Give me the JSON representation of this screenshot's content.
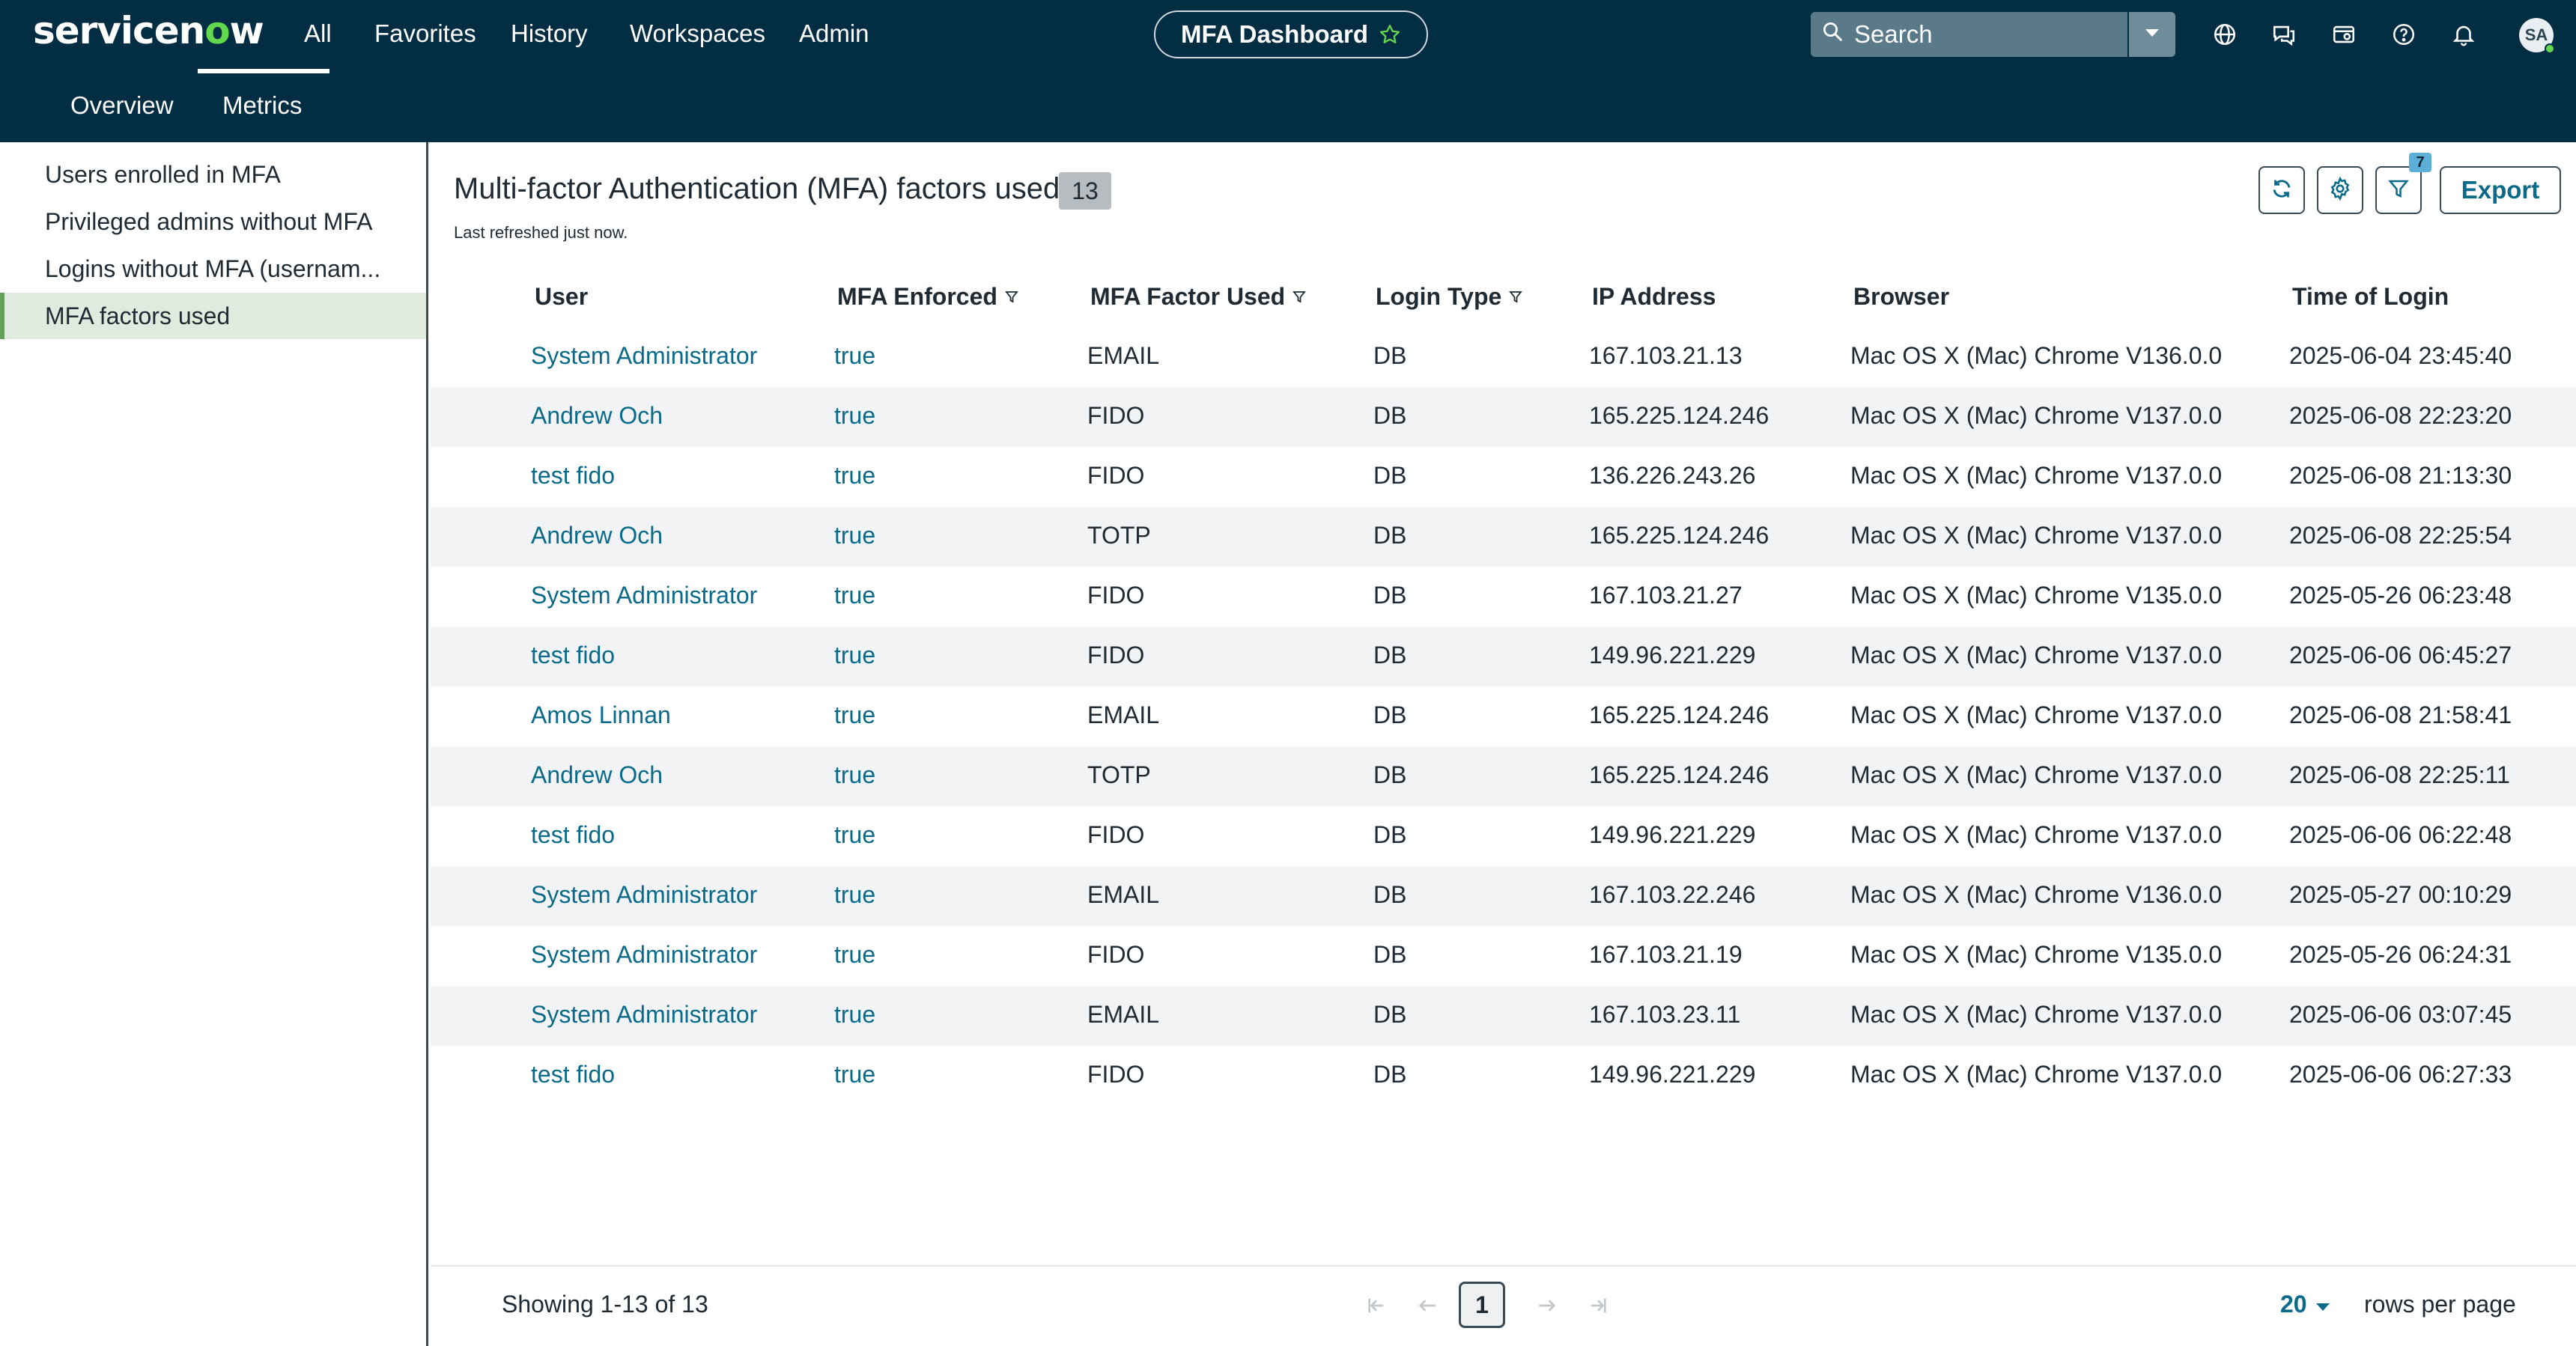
{
  "header": {
    "logo_text": "servicen",
    "logo_o": "o",
    "logo_tail": "w",
    "nav": [
      "All",
      "Favorites",
      "History",
      "Workspaces",
      "Admin"
    ],
    "dashboard_title": "MFA Dashboard",
    "search_placeholder": "Search",
    "avatar_initials": "SA",
    "icons": [
      "globe-icon",
      "chat-icon",
      "card-icon",
      "help-icon",
      "bell-icon"
    ]
  },
  "tabs": [
    "Overview",
    "Metrics"
  ],
  "active_tab": "Metrics",
  "sidebar": {
    "items": [
      "Users enrolled in MFA",
      "Privileged admins without MFA",
      "Logins without MFA (usernam...",
      "MFA factors used"
    ],
    "active_index": 3
  },
  "main": {
    "title": "Multi-factor Authentication (MFA) factors used",
    "count": "13",
    "refreshed": "Last refreshed just now.",
    "filter_count": "7",
    "export_label": "Export"
  },
  "table": {
    "columns": [
      "User",
      "MFA Enforced",
      "MFA Factor Used",
      "Login Type",
      "IP Address",
      "Browser",
      "Time of Login"
    ],
    "filterable": [
      false,
      true,
      true,
      true,
      false,
      false,
      false
    ],
    "rows": [
      [
        "System Administrator",
        "true",
        "EMAIL",
        "DB",
        "167.103.21.13",
        "Mac OS X (Mac) Chrome V136.0.0",
        "2025-06-04 23:45:40"
      ],
      [
        "Andrew Och",
        "true",
        "FIDO",
        "DB",
        "165.225.124.246",
        "Mac OS X (Mac) Chrome V137.0.0",
        "2025-06-08 22:23:20"
      ],
      [
        "test fido",
        "true",
        "FIDO",
        "DB",
        "136.226.243.26",
        "Mac OS X (Mac) Chrome V137.0.0",
        "2025-06-08 21:13:30"
      ],
      [
        "Andrew Och",
        "true",
        "TOTP",
        "DB",
        "165.225.124.246",
        "Mac OS X (Mac) Chrome V137.0.0",
        "2025-06-08 22:25:54"
      ],
      [
        "System Administrator",
        "true",
        "FIDO",
        "DB",
        "167.103.21.27",
        "Mac OS X (Mac) Chrome V135.0.0",
        "2025-05-26 06:23:48"
      ],
      [
        "test fido",
        "true",
        "FIDO",
        "DB",
        "149.96.221.229",
        "Mac OS X (Mac) Chrome V137.0.0",
        "2025-06-06 06:45:27"
      ],
      [
        "Amos Linnan",
        "true",
        "EMAIL",
        "DB",
        "165.225.124.246",
        "Mac OS X (Mac) Chrome V137.0.0",
        "2025-06-08 21:58:41"
      ],
      [
        "Andrew Och",
        "true",
        "TOTP",
        "DB",
        "165.225.124.246",
        "Mac OS X (Mac) Chrome V137.0.0",
        "2025-06-08 22:25:11"
      ],
      [
        "test fido",
        "true",
        "FIDO",
        "DB",
        "149.96.221.229",
        "Mac OS X (Mac) Chrome V137.0.0",
        "2025-06-06 06:22:48"
      ],
      [
        "System Administrator",
        "true",
        "EMAIL",
        "DB",
        "167.103.22.246",
        "Mac OS X (Mac) Chrome V136.0.0",
        "2025-05-27 00:10:29"
      ],
      [
        "System Administrator",
        "true",
        "FIDO",
        "DB",
        "167.103.21.19",
        "Mac OS X (Mac) Chrome V135.0.0",
        "2025-05-26 06:24:31"
      ],
      [
        "System Administrator",
        "true",
        "EMAIL",
        "DB",
        "167.103.23.11",
        "Mac OS X (Mac) Chrome V137.0.0",
        "2025-06-06 03:07:45"
      ],
      [
        "test fido",
        "true",
        "FIDO",
        "DB",
        "149.96.221.229",
        "Mac OS X (Mac) Chrome V137.0.0",
        "2025-06-06 06:27:33"
      ]
    ]
  },
  "footer": {
    "showing": "Showing 1-13 of 13",
    "page": "1",
    "rows_per_page_value": "20",
    "rows_per_page_label": "rows per page"
  },
  "colors": {
    "header_bg": "#032d42",
    "link": "#0a6a8a",
    "accent_green": "#62d84e",
    "active_side_bg": "#e0eadf"
  }
}
